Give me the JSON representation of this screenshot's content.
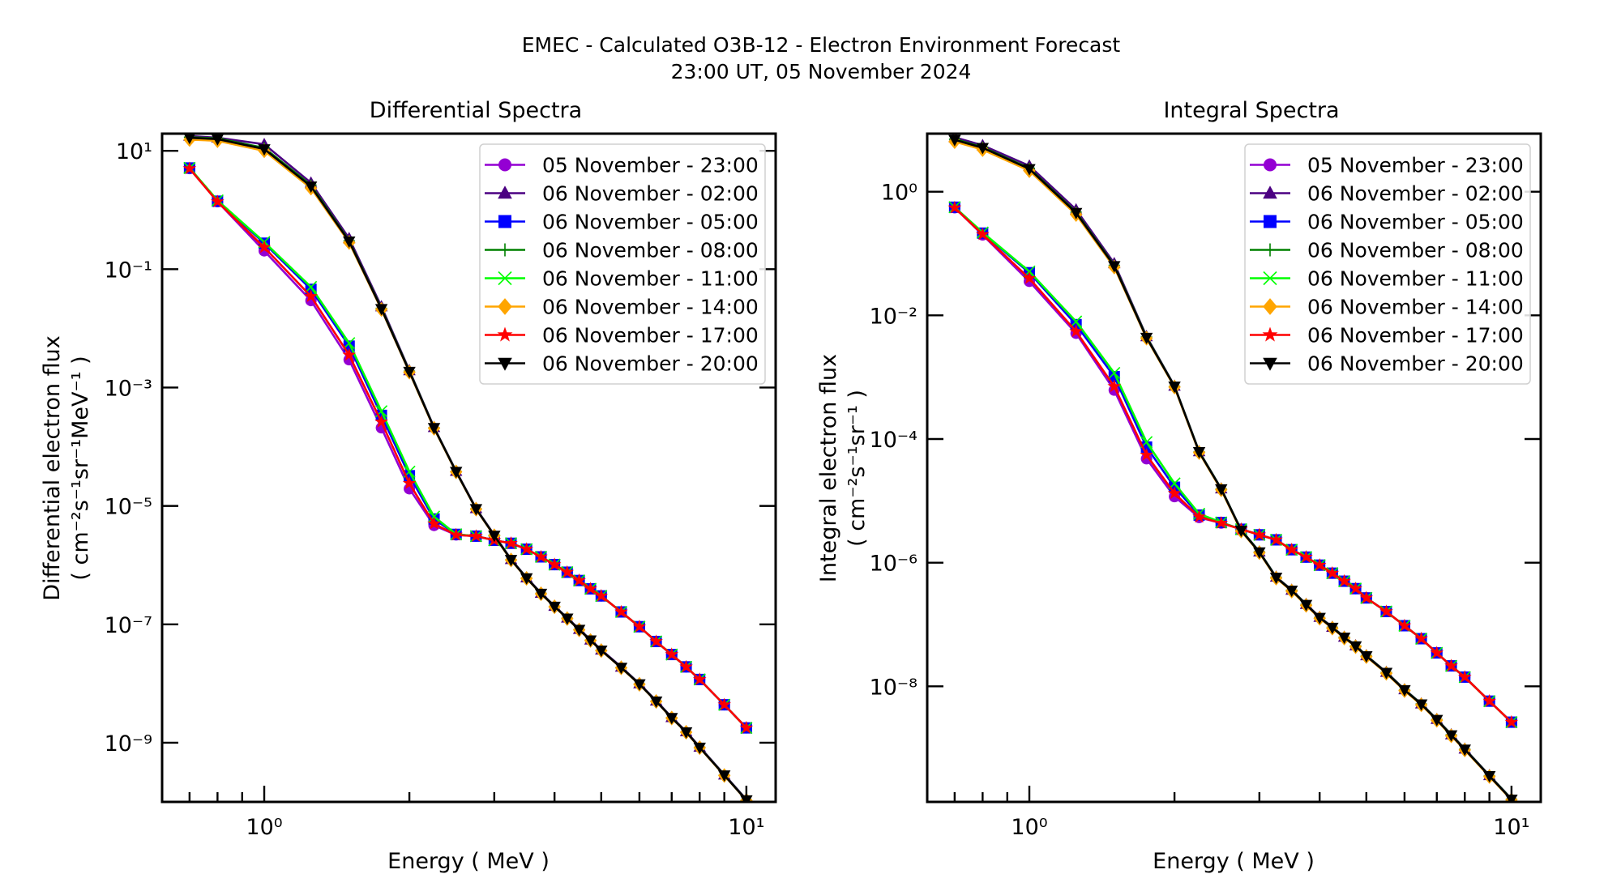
{
  "figure": {
    "title_line1": "EMEC - Calculated O3B-12 - Electron Environment Forecast",
    "title_line2": "23:00 UT, 05 November 2024"
  },
  "series_styles": [
    {
      "name": "05 November - 23:00",
      "color": "#9400d3",
      "marker": "circle"
    },
    {
      "name": "06 November - 02:00",
      "color": "#4b0082",
      "marker": "triangle-up"
    },
    {
      "name": "06 November - 05:00",
      "color": "#0000ff",
      "marker": "square"
    },
    {
      "name": "06 November - 08:00",
      "color": "#008000",
      "marker": "plus"
    },
    {
      "name": "06 November - 11:00",
      "color": "#00ff00",
      "marker": "x"
    },
    {
      "name": "06 November - 14:00",
      "color": "#ffa500",
      "marker": "diamond"
    },
    {
      "name": "06 November - 17:00",
      "color": "#ff0000",
      "marker": "star"
    },
    {
      "name": "06 November - 20:00",
      "color": "#000000",
      "marker": "triangle-down"
    }
  ],
  "chart_data": [
    {
      "type": "line",
      "title": "Differential Spectra",
      "xlabel": "Energy ( MeV )",
      "ylabel_line1": "Differential electron flux",
      "ylabel_line2": "( cm⁻²s⁻¹sr⁻¹MeV⁻¹ )",
      "xscale": "log",
      "yscale": "log",
      "xlim": [
        0.614,
        11.5
      ],
      "ylim": [
        1e-10,
        19.5
      ],
      "xticks": [
        {
          "value": 1,
          "label": "10⁰"
        },
        {
          "value": 10,
          "label": "10¹"
        }
      ],
      "yticks": [
        {
          "value": 10,
          "label": "10¹"
        },
        {
          "value": 0.1,
          "label": "10⁻¹"
        },
        {
          "value": 0.001,
          "label": "10⁻³"
        },
        {
          "value": 1e-05,
          "label": "10⁻⁵"
        },
        {
          "value": 1e-07,
          "label": "10⁻⁷"
        },
        {
          "value": 1e-09,
          "label": "10⁻⁹"
        }
      ],
      "grid": false,
      "legend_position": "top-right",
      "x": [
        0.7,
        0.8,
        1.0,
        1.25,
        1.5,
        1.75,
        2.0,
        2.25,
        2.5,
        2.75,
        3.0,
        3.25,
        3.5,
        3.75,
        4.0,
        4.25,
        4.5,
        4.75,
        5.0,
        5.5,
        6.0,
        6.5,
        7.0,
        7.5,
        8.0,
        9.0,
        10.0
      ],
      "series": [
        {
          "name": "05 November - 23:00",
          "values": [
            5.01,
            1.38,
            0.204,
            0.0295,
            0.00295,
            0.000209,
            1.95e-05,
            4.68e-06,
            3.24e-06,
            3.09e-06,
            2.63e-06,
            2.34e-06,
            1.86e-06,
            1.38e-06,
            1.02e-06,
            7.59e-07,
            5.5e-07,
            3.98e-07,
            3.02e-07,
            1.62e-07,
            9.12e-08,
            5.13e-08,
            3.09e-08,
            1.91e-08,
            1.17e-08,
            4.37e-09,
            1.78e-09
          ]
        },
        {
          "name": "06 November - 02:00",
          "values": [
            17.8,
            16.6,
            12.9,
            2.88,
            0.331,
            0.0234,
            0.00195,
            0.000214,
            3.89e-05,
            9.12e-06,
            3.24e-06,
            1.26e-06,
            6.17e-07,
            3.39e-07,
            2.04e-07,
            1.29e-07,
            8.32e-08,
            5.5e-08,
            3.72e-08,
            1.91e-08,
            1e-08,
            5.13e-09,
            2.69e-09,
            1.55e-09,
            8.51e-10,
            2.88e-10,
            1.1e-10
          ]
        },
        {
          "name": "06 November - 05:00",
          "values": [
            5.13,
            1.41,
            0.275,
            0.0457,
            0.00501,
            0.000339,
            3.24e-05,
            6.03e-06,
            3.31e-06,
            3.09e-06,
            2.63e-06,
            2.34e-06,
            1.86e-06,
            1.38e-06,
            1.02e-06,
            7.59e-07,
            5.5e-07,
            3.98e-07,
            3.02e-07,
            1.62e-07,
            9.12e-08,
            5.13e-08,
            3.09e-08,
            1.91e-08,
            1.17e-08,
            4.37e-09,
            1.78e-09
          ]
        },
        {
          "name": "06 November - 08:00",
          "values": [
            17.0,
            16.2,
            11.2,
            2.63,
            0.302,
            0.0219,
            0.0019,
            0.000211,
            3.83e-05,
            8.97e-06,
            3.18e-06,
            1.24e-06,
            6.07e-07,
            3.33e-07,
            2.01e-07,
            1.27e-07,
            8.18e-08,
            5.4e-08,
            3.65e-08,
            1.87e-08,
            9.82e-09,
            5.04e-09,
            2.65e-09,
            1.52e-09,
            8.37e-10,
            2.84e-10,
            1.08e-10
          ]
        },
        {
          "name": "06 November - 11:00",
          "values": [
            5.13,
            1.45,
            0.288,
            0.0501,
            0.00562,
            0.000398,
            3.8e-05,
            6.61e-06,
            3.31e-06,
            3.09e-06,
            2.63e-06,
            2.34e-06,
            1.86e-06,
            1.38e-06,
            1.02e-06,
            7.59e-07,
            5.5e-07,
            3.98e-07,
            3.02e-07,
            1.62e-07,
            9.12e-08,
            5.13e-08,
            3.09e-08,
            1.91e-08,
            1.17e-08,
            4.37e-09,
            1.78e-09
          ]
        },
        {
          "name": "06 November - 14:00",
          "values": [
            15.5,
            14.8,
            10.0,
            2.34,
            0.282,
            0.0209,
            0.00182,
            0.000205,
            3.76e-05,
            8.81e-06,
            3.13e-06,
            1.22e-06,
            5.97e-07,
            3.28e-07,
            1.98e-07,
            1.25e-07,
            8.05e-08,
            5.32e-08,
            3.6e-08,
            1.84e-08,
            9.68e-09,
            4.97e-09,
            2.61e-09,
            1.5e-09,
            8.24e-10,
            2.79e-10,
            1.06e-10
          ]
        },
        {
          "name": "06 November - 17:00",
          "values": [
            5.01,
            1.38,
            0.234,
            0.0347,
            0.00355,
            0.000263,
            2.4e-05,
            5.01e-06,
            3.24e-06,
            3.09e-06,
            2.63e-06,
            2.34e-06,
            1.86e-06,
            1.38e-06,
            1.02e-06,
            7.59e-07,
            5.5e-07,
            3.98e-07,
            3.02e-07,
            1.62e-07,
            9.12e-08,
            5.13e-08,
            3.09e-08,
            1.91e-08,
            1.17e-08,
            4.37e-09,
            1.78e-09
          ]
        },
        {
          "name": "06 November - 20:00",
          "values": [
            16.6,
            15.8,
            10.7,
            2.51,
            0.295,
            0.0214,
            0.00186,
            0.000209,
            3.8e-05,
            8.91e-06,
            3.16e-06,
            1.23e-06,
            6.03e-07,
            3.31e-07,
            2e-07,
            1.26e-07,
            8.13e-08,
            5.37e-08,
            3.63e-08,
            1.86e-08,
            9.77e-09,
            5.01e-09,
            2.63e-09,
            1.51e-09,
            8.32e-10,
            2.82e-10,
            1.07e-10
          ]
        }
      ]
    },
    {
      "type": "line",
      "title": "Integral Spectra",
      "xlabel": "Energy ( MeV )",
      "ylabel_line1": "Integral electron flux",
      "ylabel_line2": "( cm⁻²s⁻¹sr⁻¹ )",
      "xscale": "log",
      "yscale": "log",
      "xlim": [
        0.614,
        11.5
      ],
      "ylim": [
        1.35e-10,
        8.7
      ],
      "xticks": [
        {
          "value": 1,
          "label": "10⁰"
        },
        {
          "value": 10,
          "label": "10¹"
        }
      ],
      "yticks": [
        {
          "value": 1,
          "label": "10⁰"
        },
        {
          "value": 0.01,
          "label": "10⁻²"
        },
        {
          "value": 0.0001,
          "label": "10⁻⁴"
        },
        {
          "value": 1e-06,
          "label": "10⁻⁶"
        },
        {
          "value": 1e-08,
          "label": "10⁻⁸"
        }
      ],
      "grid": false,
      "legend_position": "top-right",
      "x": [
        0.7,
        0.8,
        1.0,
        1.25,
        1.5,
        1.75,
        2.0,
        2.25,
        2.5,
        2.75,
        3.0,
        3.25,
        3.5,
        3.75,
        4.0,
        4.25,
        4.5,
        4.75,
        5.0,
        5.5,
        6.0,
        6.5,
        7.0,
        7.5,
        8.0,
        9.0,
        10.0
      ],
      "series": [
        {
          "name": "05 November - 23:00",
          "values": [
            0.55,
            0.2,
            0.0355,
            0.00513,
            0.000617,
            4.79e-05,
            1.17e-05,
            5.37e-06,
            4.37e-06,
            3.47e-06,
            2.82e-06,
            2.34e-06,
            1.62e-06,
            1.23e-06,
            9.12e-07,
            6.76e-07,
            5.01e-07,
            3.8e-07,
            2.69e-07,
            1.62e-07,
            9.55e-08,
            5.89e-08,
            3.47e-08,
            2.14e-08,
            1.41e-08,
            5.75e-09,
            2.63e-09
          ]
        },
        {
          "name": "06 November - 02:00",
          "values": [
            7.59,
            5.62,
            2.63,
            0.513,
            0.0692,
            0.00457,
            0.000724,
            6.31e-05,
            1.58e-05,
            3.39e-06,
            1.51e-06,
            5.89e-07,
            3.63e-07,
            2.14e-07,
            1.32e-07,
            9.12e-08,
            6.31e-08,
            4.57e-08,
            3.16e-08,
            1.7e-08,
            8.91e-09,
            5.25e-09,
            2.95e-09,
            1.66e-09,
            9.77e-10,
            3.63e-10,
            1.51e-10
          ]
        },
        {
          "name": "06 November - 05:00",
          "values": [
            0.562,
            0.214,
            0.049,
            0.00708,
            0.00102,
            7.41e-05,
            1.66e-05,
            5.89e-06,
            4.47e-06,
            3.47e-06,
            2.82e-06,
            2.34e-06,
            1.62e-06,
            1.23e-06,
            9.12e-07,
            6.76e-07,
            5.01e-07,
            3.8e-07,
            2.69e-07,
            1.62e-07,
            9.55e-08,
            5.89e-08,
            3.47e-08,
            2.14e-08,
            1.41e-08,
            5.75e-09,
            2.63e-09
          ]
        },
        {
          "name": "06 November - 08:00",
          "values": [
            7.08,
            5.25,
            2.4,
            0.468,
            0.0646,
            0.00447,
            0.000716,
            6.24e-05,
            1.57e-05,
            3.35e-06,
            1.5e-06,
            5.82e-07,
            3.59e-07,
            2.11e-07,
            1.3e-07,
            9.01e-08,
            6.24e-08,
            4.52e-08,
            3.13e-08,
            1.68e-08,
            8.81e-09,
            5.19e-09,
            2.91e-09,
            1.64e-09,
            9.66e-10,
            3.59e-10,
            1.5e-10
          ]
        },
        {
          "name": "06 November - 11:00",
          "values": [
            0.562,
            0.219,
            0.0513,
            0.00794,
            0.00117,
            8.91e-05,
            1.91e-05,
            6.17e-06,
            4.47e-06,
            3.47e-06,
            2.82e-06,
            2.34e-06,
            1.62e-06,
            1.23e-06,
            9.12e-07,
            6.76e-07,
            5.01e-07,
            3.8e-07,
            2.69e-07,
            1.62e-07,
            9.55e-08,
            5.89e-08,
            3.47e-08,
            2.14e-08,
            1.41e-08,
            5.75e-09,
            2.63e-09
          ]
        },
        {
          "name": "06 November - 14:00",
          "values": [
            6.46,
            4.79,
            2.19,
            0.427,
            0.0603,
            0.00427,
            0.000692,
            6.03e-05,
            1.51e-05,
            3.24e-06,
            1.45e-06,
            5.62e-07,
            3.47e-07,
            2.04e-07,
            1.26e-07,
            8.71e-08,
            6.03e-08,
            4.37e-08,
            3.02e-08,
            1.62e-08,
            8.51e-09,
            5.01e-09,
            2.82e-09,
            1.58e-09,
            9.33e-10,
            3.47e-10,
            1.45e-10
          ]
        },
        {
          "name": "06 November - 17:00",
          "values": [
            0.55,
            0.204,
            0.0398,
            0.0055,
            0.000708,
            5.5e-05,
            1.32e-05,
            5.5e-06,
            4.37e-06,
            3.47e-06,
            2.82e-06,
            2.34e-06,
            1.62e-06,
            1.23e-06,
            9.12e-07,
            6.76e-07,
            5.01e-07,
            3.8e-07,
            2.69e-07,
            1.62e-07,
            9.55e-08,
            5.89e-08,
            3.47e-08,
            2.14e-08,
            1.41e-08,
            5.75e-09,
            2.63e-09
          ]
        },
        {
          "name": "06 November - 20:00",
          "values": [
            6.92,
            5.13,
            2.34,
            0.457,
            0.0631,
            0.00437,
            0.000708,
            6.17e-05,
            1.55e-05,
            3.31e-06,
            1.48e-06,
            5.75e-07,
            3.55e-07,
            2.09e-07,
            1.29e-07,
            8.91e-08,
            6.17e-08,
            4.47e-08,
            3.09e-08,
            1.66e-08,
            8.71e-09,
            5.13e-09,
            2.88e-09,
            1.62e-09,
            9.55e-10,
            3.55e-10,
            1.48e-10
          ]
        }
      ]
    }
  ]
}
